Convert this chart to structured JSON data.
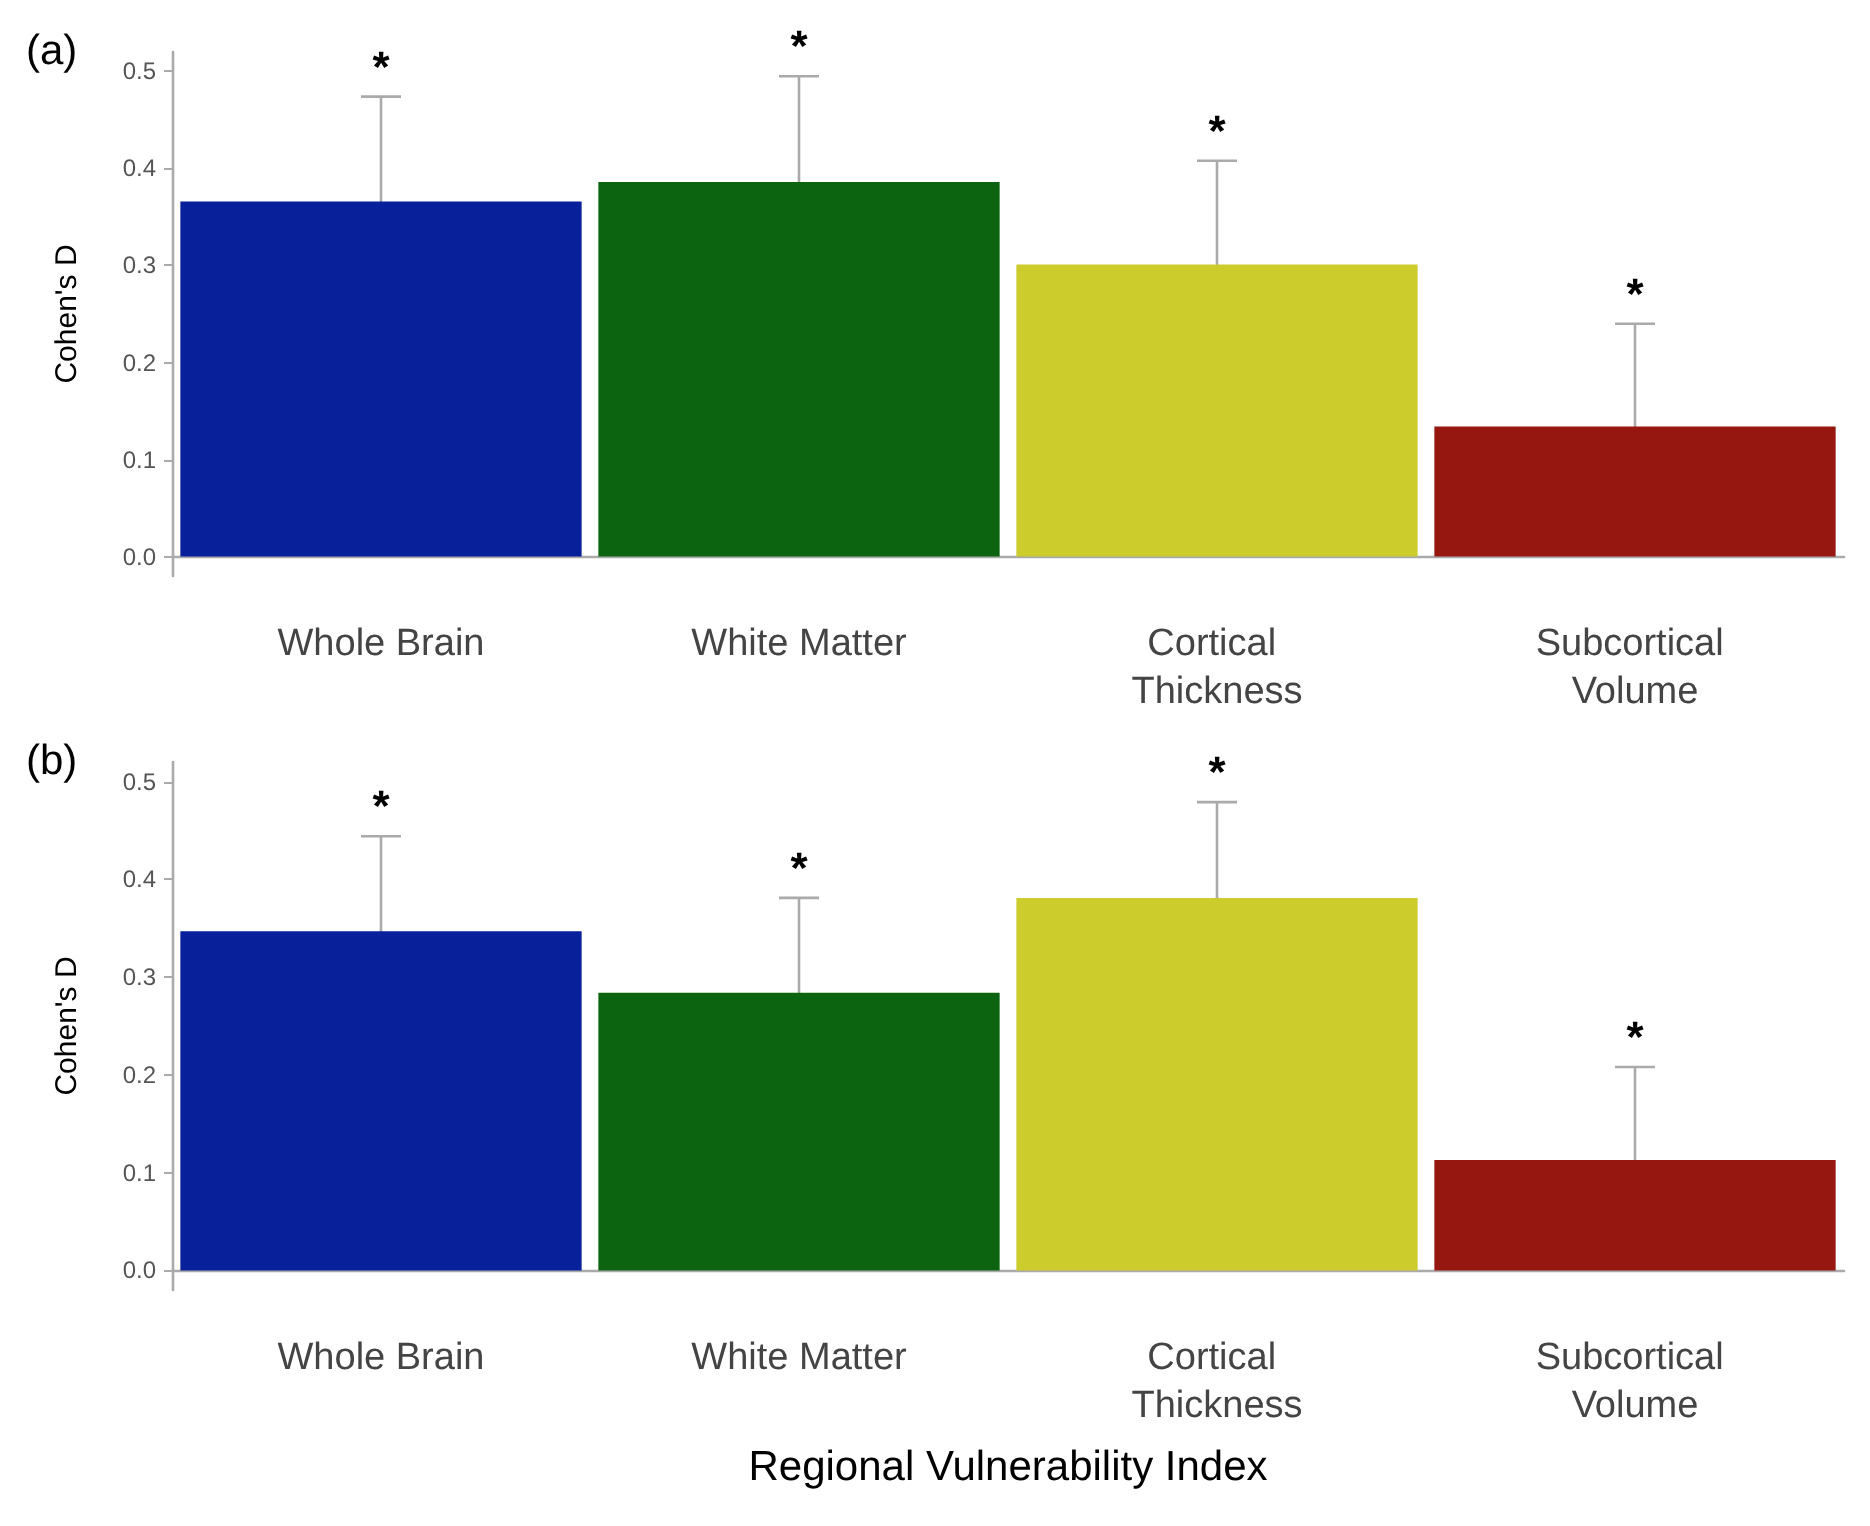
{
  "chart_data": [
    {
      "type": "bar",
      "title": "(a)",
      "ylabel": "Cohen's D",
      "categories": [
        "Whole Brain",
        "White Matter",
        "Cortical Thickness",
        "Subcortical Volume"
      ],
      "values": [
        0.366,
        0.386,
        0.301,
        0.134
      ],
      "errors": [
        0.108,
        0.109,
        0.107,
        0.106
      ],
      "colors": [
        "#08209a",
        "#0c6410",
        "#cccc2c",
        "#951710"
      ],
      "ylim": [
        -0.02,
        0.52
      ],
      "yticks": [
        {
          "value": 0,
          "label": "0.0"
        },
        0.1,
        0.2,
        0.3,
        0.4,
        0.5
      ],
      "grid": false,
      "annotations": [
        {
          "text": "*",
          "x": "Whole Brain",
          "y": 0.474
        },
        {
          "text": "*",
          "x": "White Matter",
          "y": 0.495
        },
        {
          "text": "*",
          "x": "Cortical Thickness",
          "y": 0.408
        },
        {
          "text": "*",
          "x": "Subcortical Volume",
          "y": 0.24
        }
      ]
    },
    {
      "type": "bar",
      "title": "(b)",
      "ylabel": "Cohen's D",
      "xlabel": "Regional Vulnerability Index",
      "categories": [
        "Whole Brain",
        "White Matter",
        "Cortical Thickness",
        "Subcortical Volume"
      ],
      "values": [
        0.347,
        0.284,
        0.381,
        0.113
      ],
      "errors": [
        0.097,
        0.097,
        0.098,
        0.095
      ],
      "colors": [
        "#08209a",
        "#0c6410",
        "#cccc2c",
        "#951710"
      ],
      "ylim": [
        -0.02,
        0.52
      ],
      "yticks": [
        {
          "value": 0,
          "label": "0.0"
        },
        0.1,
        0.2,
        0.3,
        0.4,
        0.5
      ],
      "grid": false,
      "annotations": [
        {
          "text": "*",
          "x": "Whole Brain",
          "y": 0.444
        },
        {
          "text": "*",
          "x": "White Matter",
          "y": 0.381
        },
        {
          "text": "*",
          "x": "Cortical Thickness",
          "y": 0.479
        },
        {
          "text": "*",
          "x": "Subcortical Volume",
          "y": 0.208
        }
      ]
    }
  ]
}
